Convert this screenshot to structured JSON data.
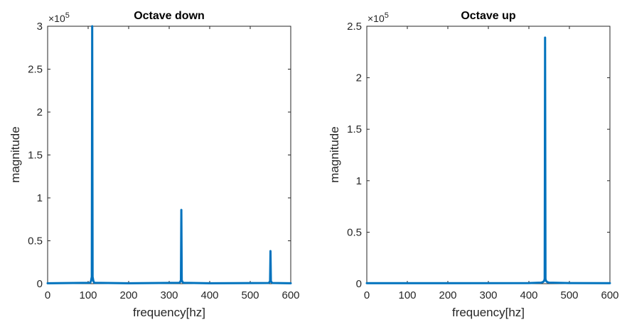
{
  "chart_data": [
    {
      "type": "line",
      "title": "Octave down",
      "xlabel": "frequency[hz]",
      "ylabel": "magnitude",
      "xlim": [
        0,
        600
      ],
      "ylim": [
        0,
        3
      ],
      "y_exponent_label": "×10",
      "y_exponent_power": "5",
      "x_ticks": [
        "0",
        "100",
        "200",
        "300",
        "400",
        "500",
        "600"
      ],
      "y_ticks": [
        "0",
        "0.5",
        "1",
        "1.5",
        "2",
        "2.5",
        "3"
      ],
      "grid": false,
      "color": "#0072BD",
      "series": [
        {
          "x": [
            0,
            105,
            107,
            109,
            110,
            111,
            113,
            115,
            200,
            325,
            327,
            329,
            330,
            331,
            333,
            335,
            400,
            545,
            547,
            549,
            550,
            551,
            553,
            555,
            600
          ],
          "y": [
            0.005,
            0.01,
            0.03,
            0.08,
            3.0,
            0.08,
            0.03,
            0.01,
            0.005,
            0.01,
            0.02,
            0.04,
            0.86,
            0.04,
            0.02,
            0.01,
            0.005,
            0.008,
            0.015,
            0.03,
            0.38,
            0.03,
            0.015,
            0.008,
            0.005
          ]
        }
      ]
    },
    {
      "type": "line",
      "title": "Octave up",
      "xlabel": "frequency[hz]",
      "ylabel": "magnitude",
      "xlim": [
        0,
        600
      ],
      "ylim": [
        0,
        2.5
      ],
      "y_exponent_label": "×10",
      "y_exponent_power": "5",
      "x_ticks": [
        "0",
        "100",
        "200",
        "300",
        "400",
        "500",
        "600"
      ],
      "y_ticks": [
        "0",
        "0.5",
        "1",
        "1.5",
        "2",
        "2.5"
      ],
      "grid": false,
      "color": "#0072BD",
      "series": [
        {
          "x": [
            0,
            200,
            400,
            430,
            434,
            436,
            438,
            439,
            440,
            441,
            442,
            444,
            446,
            450,
            500,
            600
          ],
          "y": [
            0.005,
            0.005,
            0.006,
            0.01,
            0.015,
            0.02,
            0.03,
            0.05,
            2.39,
            0.05,
            0.03,
            0.02,
            0.015,
            0.01,
            0.006,
            0.005
          ]
        }
      ]
    }
  ]
}
